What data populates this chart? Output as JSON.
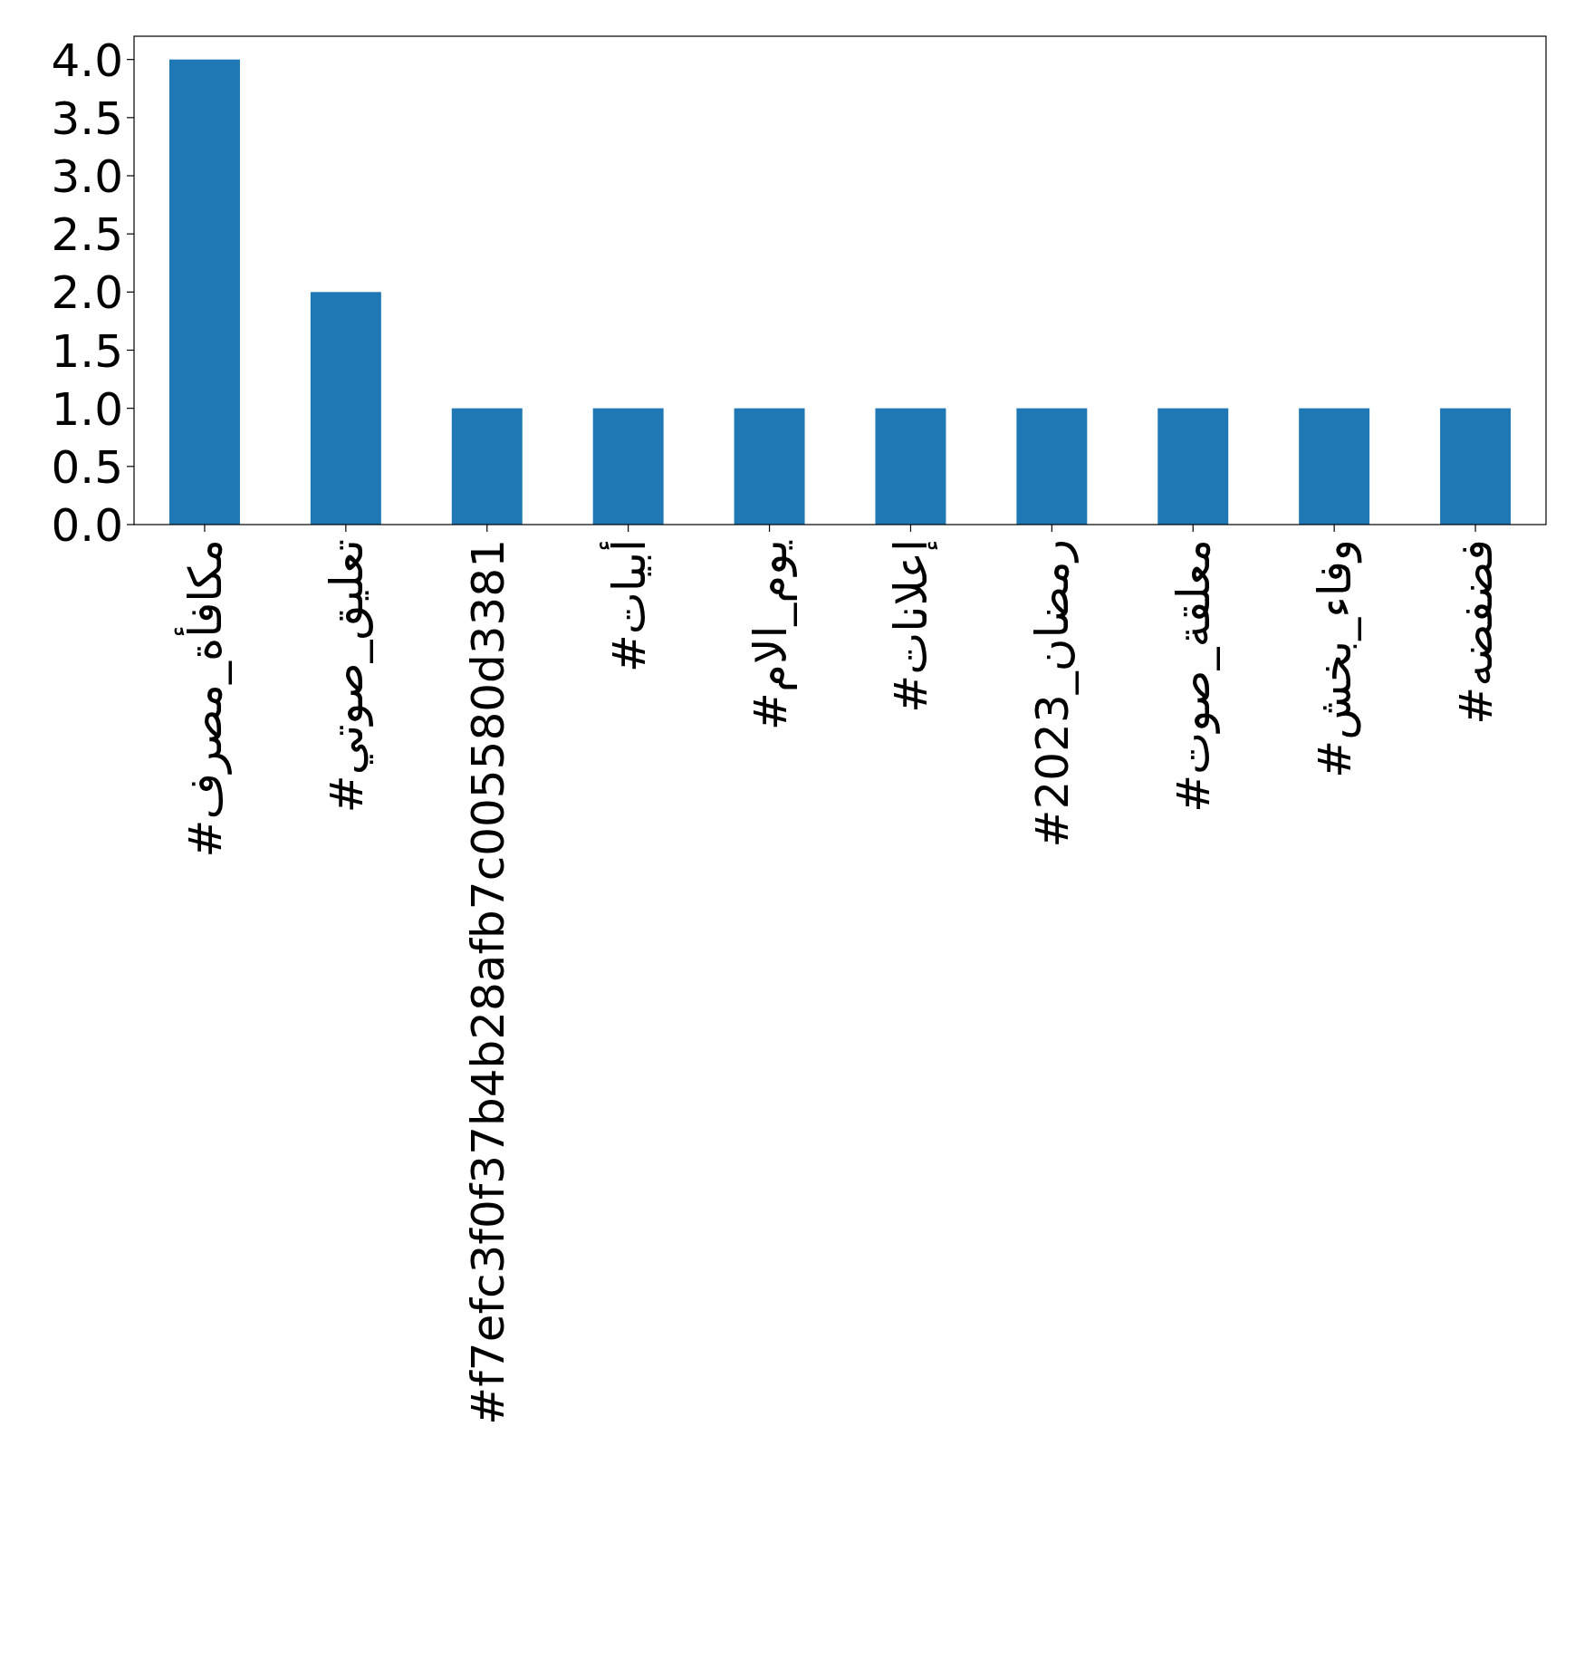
{
  "chart_data": {
    "type": "bar",
    "categories": [
      "#مكافأة_مصرف",
      "#تعليق_صوتي",
      "#f7efc3f0f37b4b28afb7c005580d3381",
      "#أبيات",
      "#يوم_الام",
      "#إعلانات",
      "#رمضان_2023",
      "#معلقة_صوت",
      "#وفاء_بخش",
      "#فضفضه"
    ],
    "values": [
      4,
      2,
      1,
      1,
      1,
      1,
      1,
      1,
      1,
      1
    ],
    "color": "#1f77b4",
    "ylim": [
      0,
      4.2
    ],
    "yticks": [
      {
        "value": 0,
        "label": "0.0"
      },
      {
        "value": 0.5,
        "label": "0.5"
      },
      {
        "value": 1,
        "label": "1.0"
      },
      {
        "value": 1.5,
        "label": "1.5"
      },
      {
        "value": 2,
        "label": "2.0"
      },
      {
        "value": 2.5,
        "label": "2.5"
      },
      {
        "value": 3,
        "label": "3.0"
      },
      {
        "value": 3.5,
        "label": "3.5"
      },
      {
        "value": 4,
        "label": "4.0"
      }
    ]
  }
}
